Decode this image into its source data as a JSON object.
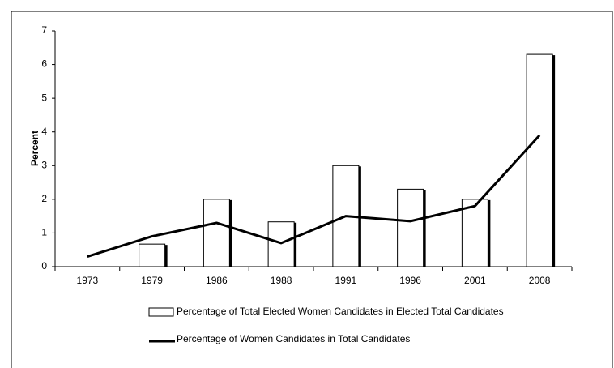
{
  "chart_data": {
    "type": "bar",
    "y_label": "Percent",
    "categories": [
      "1973",
      "1979",
      "1986",
      "1988",
      "1991",
      "1996",
      "2001",
      "2008"
    ],
    "series": [
      {
        "name": "Percentage of Total Elected Women Candidates in Elected Total Candidates",
        "type": "bar",
        "color": "#ffffff",
        "values": [
          0,
          0.67,
          2.0,
          1.33,
          3.0,
          2.3,
          2.0,
          6.3
        ]
      },
      {
        "name": "Percentage of Women Candidates in Total Candidates",
        "type": "line",
        "color": "#000000",
        "values": [
          0.3,
          0.9,
          1.3,
          0.7,
          1.5,
          1.35,
          1.8,
          3.9
        ]
      }
    ],
    "ylim": [
      0,
      7
    ],
    "yticks": [
      0,
      1,
      2,
      3,
      4,
      5,
      6,
      7
    ],
    "grid": false
  }
}
